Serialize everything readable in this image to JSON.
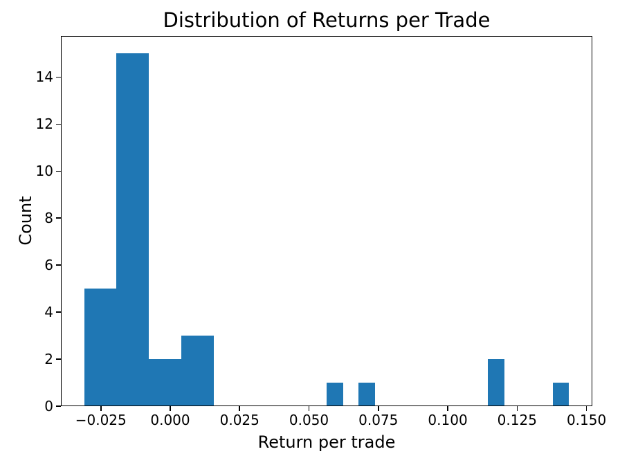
{
  "chart_data": {
    "type": "bar",
    "subtype": "histogram",
    "title": "Distribution of Returns per Trade",
    "xlabel": "Return per trade",
    "ylabel": "Count",
    "bar_color": "#1f77b4",
    "axis_color": "#000000",
    "background_color": "#ffffff",
    "grid": false,
    "legend": null,
    "n_bins": 30,
    "bin_start": -0.031,
    "bin_width": 0.00582,
    "counts": [
      5,
      5,
      15,
      15,
      2,
      2,
      3,
      3,
      0,
      0,
      0,
      0,
      0,
      0,
      0,
      1,
      0,
      1,
      0,
      0,
      0,
      0,
      0,
      0,
      0,
      2,
      0,
      0,
      0,
      1
    ],
    "total_trades": 55,
    "xlim": [
      -0.0394,
      0.1521
    ],
    "ylim": [
      0,
      15.75
    ],
    "x_ticks": [
      {
        "value": -0.025,
        "label": "−0.025"
      },
      {
        "value": 0.0,
        "label": "0.000"
      },
      {
        "value": 0.025,
        "label": "0.025"
      },
      {
        "value": 0.05,
        "label": "0.050"
      },
      {
        "value": 0.075,
        "label": "0.075"
      },
      {
        "value": 0.1,
        "label": "0.100"
      },
      {
        "value": 0.125,
        "label": "0.125"
      },
      {
        "value": 0.15,
        "label": "0.150"
      }
    ],
    "y_ticks": [
      {
        "value": 0,
        "label": "0"
      },
      {
        "value": 2,
        "label": "2"
      },
      {
        "value": 4,
        "label": "4"
      },
      {
        "value": 6,
        "label": "6"
      },
      {
        "value": 8,
        "label": "8"
      },
      {
        "value": 10,
        "label": "10"
      },
      {
        "value": 12,
        "label": "12"
      },
      {
        "value": 14,
        "label": "14"
      }
    ]
  }
}
